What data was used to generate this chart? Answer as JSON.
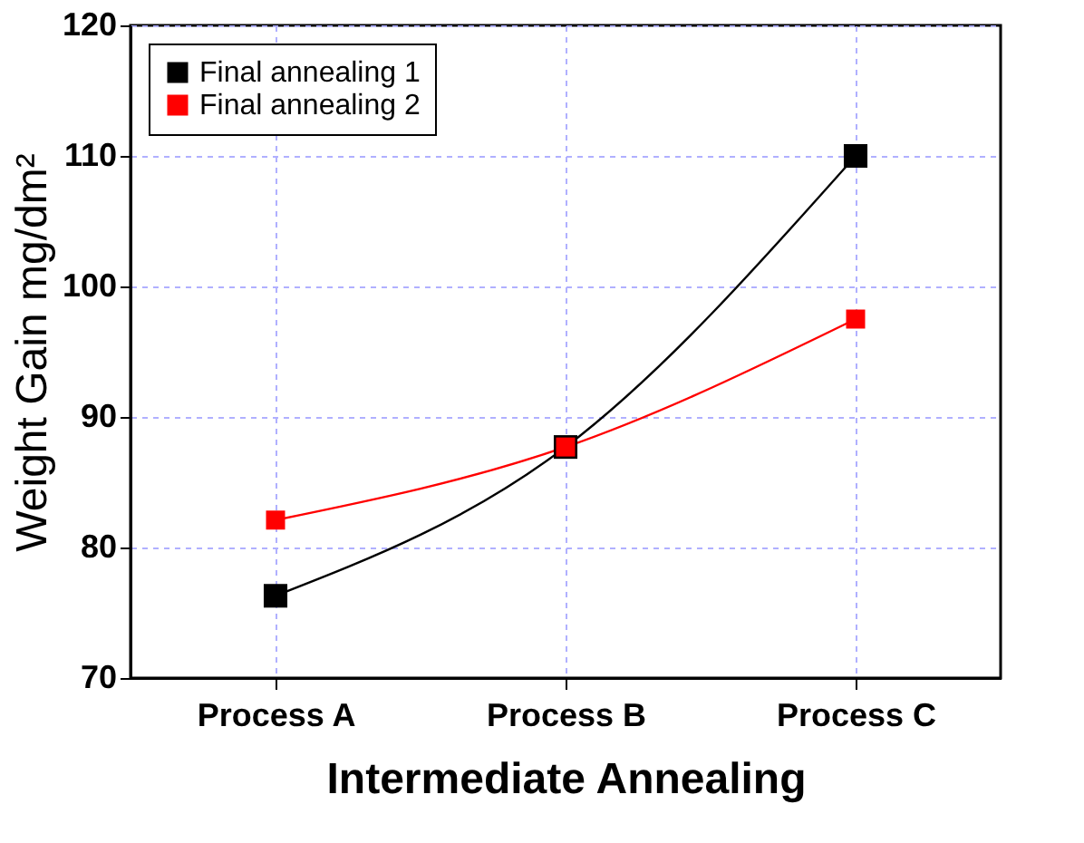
{
  "chart_data": {
    "type": "line",
    "xlabel": "Intermediate Annealing",
    "ylabel": "Weight Gain mg/dm²",
    "categories": [
      "Process A",
      "Process B",
      "Process C"
    ],
    "series": [
      {
        "name": "Final annealing 1",
        "color": "#000000",
        "values": [
          76.3,
          87.7,
          110.0
        ]
      },
      {
        "name": "Final annealing 2",
        "color": "#ff0000",
        "values": [
          82.1,
          87.7,
          97.5
        ]
      }
    ],
    "ylim": [
      70,
      120
    ],
    "yticks": [
      70,
      80,
      90,
      100,
      110,
      120
    ],
    "grid": true,
    "legend": "top left",
    "marker": "square",
    "line_style": "solid"
  }
}
